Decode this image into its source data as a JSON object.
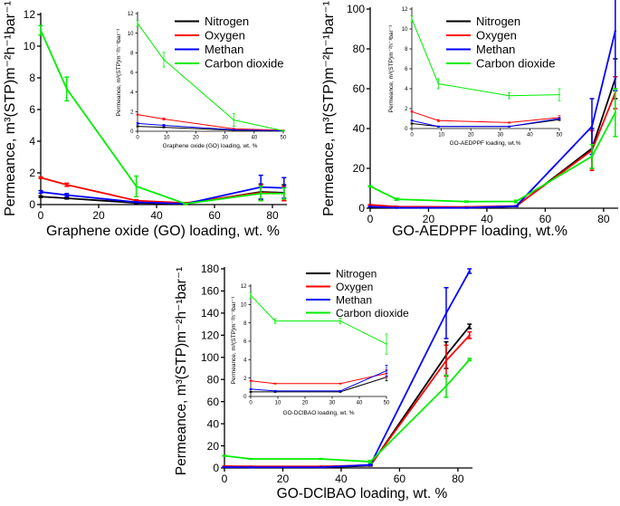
{
  "colors": {
    "Nitrogen": "#000000",
    "Oxygen": "#ff0000",
    "Methan": "#0000ff",
    "Carbon dioxide": "#00ee00"
  },
  "chart_data": [
    {
      "id": "go-main",
      "type": "line",
      "xlabel": "Graphene oxide (GO) loading, wt. %",
      "ylabel": "Permeance, m³(STP)m⁻²h⁻¹bar⁻¹",
      "xlim": [
        0,
        85
      ],
      "ylim": [
        0,
        12
      ],
      "xticks": [
        0,
        20,
        40,
        60,
        80
      ],
      "yticks": [
        0,
        2,
        4,
        6,
        8,
        10,
        12
      ],
      "legend": "top-right",
      "x": [
        0,
        9,
        33,
        50,
        76,
        84
      ],
      "series": [
        {
          "name": "Nitrogen",
          "values": [
            0.5,
            0.4,
            0.1,
            0.05,
            0.8,
            0.75
          ],
          "errors": [
            0.05,
            0.05,
            0.03,
            0.02,
            0.5,
            0.5
          ]
        },
        {
          "name": "Oxygen",
          "values": [
            1.7,
            1.25,
            0.25,
            0.1,
            0.75,
            0.7
          ],
          "errors": [
            0.05,
            0.1,
            0.05,
            0.02,
            0.5,
            0.45
          ]
        },
        {
          "name": "Methan",
          "values": [
            0.8,
            0.6,
            0.15,
            0.05,
            1.1,
            1.05
          ],
          "errors": [
            0.08,
            0.1,
            0.03,
            0.02,
            0.75,
            0.65
          ]
        },
        {
          "name": "Carbon dioxide",
          "values": [
            11,
            7.3,
            1.15,
            0.05,
            0.7,
            0.7
          ],
          "errors": [
            0.3,
            0.75,
            0.65,
            0.03,
            0.45,
            0.35
          ]
        }
      ]
    },
    {
      "id": "go-inset",
      "type": "line",
      "xlabel": "Graphene oxide (GO) loading, wt. %",
      "ylabel": "Permeance, m³(STP)m⁻²h⁻¹bar⁻¹",
      "xlim": [
        0,
        50
      ],
      "ylim": [
        0,
        12
      ],
      "xticks": [
        0,
        10,
        20,
        30,
        40,
        50
      ],
      "yticks": [
        0,
        2,
        4,
        6,
        8,
        10,
        12
      ],
      "x": [
        0,
        9,
        33,
        50
      ],
      "series": [
        {
          "name": "Nitrogen",
          "values": [
            0.5,
            0.4,
            0.1,
            0.05
          ],
          "errors": [
            0.05,
            0.05,
            0.03,
            0.02
          ]
        },
        {
          "name": "Oxygen",
          "values": [
            1.7,
            1.25,
            0.25,
            0.1
          ],
          "errors": [
            0.05,
            0.1,
            0.05,
            0.02
          ]
        },
        {
          "name": "Methan",
          "values": [
            0.8,
            0.6,
            0.15,
            0.05
          ],
          "errors": [
            0.08,
            0.1,
            0.03,
            0.02
          ]
        },
        {
          "name": "Carbon dioxide",
          "values": [
            11,
            7.3,
            1.15,
            0.05
          ],
          "errors": [
            0.3,
            0.75,
            0.65,
            0.03
          ]
        }
      ]
    },
    {
      "id": "aedppf-main",
      "type": "line",
      "xlabel": "GO-AEDPPF loading, wt.%",
      "ylabel": "Permeance, m³(STP)m⁻²h⁻¹bar⁻¹",
      "xlim": [
        0,
        85
      ],
      "ylim": [
        0,
        100
      ],
      "xticks": [
        0,
        20,
        40,
        60,
        80
      ],
      "yticks": [
        0,
        20,
        40,
        60,
        80,
        100
      ],
      "legend": "top-right",
      "x": [
        0,
        9,
        33,
        50,
        76,
        84
      ],
      "series": [
        {
          "name": "Nitrogen",
          "values": [
            0.5,
            0.2,
            0.2,
            0.9,
            30,
            65
          ],
          "errors": [
            0.1,
            0.1,
            0.1,
            0.1,
            10,
            10
          ]
        },
        {
          "name": "Oxygen",
          "values": [
            1.7,
            0.8,
            0.6,
            1.1,
            29,
            58
          ],
          "errors": [
            0.1,
            0.1,
            0.1,
            0.2,
            10,
            8
          ]
        },
        {
          "name": "Methan",
          "values": [
            0.8,
            0.2,
            0.2,
            1.0,
            41,
            89
          ],
          "errors": [
            0.1,
            0.1,
            0.1,
            0.2,
            14,
            30
          ]
        },
        {
          "name": "Carbon dioxide",
          "values": [
            11,
            4.5,
            3.3,
            3.4,
            26,
            48
          ],
          "errors": [
            0.3,
            0.5,
            0.3,
            0.6,
            6,
            12
          ]
        }
      ]
    },
    {
      "id": "aedppf-inset",
      "type": "line",
      "xlabel": "GO-AEDPPF loading, wt.%",
      "ylabel": "Permeance, m³(STP)m⁻²h⁻¹bar⁻¹",
      "xlim": [
        0,
        50
      ],
      "ylim": [
        0,
        12
      ],
      "xticks": [
        0,
        10,
        20,
        30,
        40,
        50
      ],
      "yticks": [
        0,
        2,
        4,
        6,
        8,
        10,
        12
      ],
      "x": [
        0,
        9,
        33,
        50
      ],
      "series": [
        {
          "name": "Nitrogen",
          "values": [
            0.5,
            0.2,
            0.2,
            0.9
          ],
          "errors": [
            0.05,
            0.05,
            0.05,
            0.1
          ]
        },
        {
          "name": "Oxygen",
          "values": [
            1.7,
            0.8,
            0.6,
            1.1
          ],
          "errors": [
            0.05,
            0.1,
            0.05,
            0.2
          ]
        },
        {
          "name": "Methan",
          "values": [
            0.8,
            0.2,
            0.2,
            1.0
          ],
          "errors": [
            0.05,
            0.05,
            0.05,
            0.1
          ]
        },
        {
          "name": "Carbon dioxide",
          "values": [
            11,
            4.5,
            3.3,
            3.4
          ],
          "errors": [
            0.3,
            0.5,
            0.3,
            0.6
          ]
        }
      ]
    },
    {
      "id": "dcibao-main",
      "type": "line",
      "xlabel": "GO-DClBAO loading, wt. %",
      "ylabel": "Permeance, m³(STP)m⁻²h⁻¹bar⁻¹",
      "xlim": [
        0,
        85
      ],
      "ylim": [
        0,
        180
      ],
      "xticks": [
        0,
        20,
        40,
        60,
        80
      ],
      "yticks": [
        0,
        20,
        40,
        60,
        80,
        100,
        120,
        140,
        160,
        180
      ],
      "legend": "top-center",
      "x": [
        0,
        9,
        33,
        50,
        76,
        84
      ],
      "series": [
        {
          "name": "Nitrogen",
          "values": [
            0.5,
            0.5,
            0.5,
            2.1,
            102,
            128
          ],
          "errors": [
            0.1,
            0.1,
            0.1,
            0.4,
            12,
            2
          ]
        },
        {
          "name": "Oxygen",
          "values": [
            1.7,
            1.4,
            1.4,
            2.5,
            97,
            120
          ],
          "errors": [
            0.1,
            0.1,
            0.1,
            0.4,
            14,
            3
          ]
        },
        {
          "name": "Methan",
          "values": [
            0.8,
            0.6,
            0.6,
            2.8,
            140,
            178
          ],
          "errors": [
            0.1,
            0.1,
            0.1,
            0.6,
            23,
            2
          ]
        },
        {
          "name": "Carbon dioxide",
          "values": [
            11,
            8.2,
            8.2,
            5.7,
            74,
            98
          ],
          "errors": [
            0.3,
            0.2,
            0.3,
            1.1,
            10,
            1
          ]
        }
      ]
    },
    {
      "id": "dcibao-inset",
      "type": "line",
      "xlabel": "GO-DClBAO loading, wt. %",
      "ylabel": "Permeance, m³(STP)m⁻²h⁻¹bar⁻¹",
      "xlim": [
        0,
        50
      ],
      "ylim": [
        0,
        12
      ],
      "xticks": [
        0,
        10,
        20,
        30,
        40,
        50
      ],
      "yticks": [
        0,
        2,
        4,
        6,
        8,
        10,
        12
      ],
      "x": [
        0,
        9,
        33,
        50
      ],
      "series": [
        {
          "name": "Nitrogen",
          "values": [
            0.5,
            0.5,
            0.5,
            2.1
          ],
          "errors": [
            0.05,
            0.05,
            0.05,
            0.4
          ]
        },
        {
          "name": "Oxygen",
          "values": [
            1.7,
            1.4,
            1.4,
            2.5
          ],
          "errors": [
            0.05,
            0.05,
            0.05,
            0.4
          ]
        },
        {
          "name": "Methan",
          "values": [
            0.8,
            0.6,
            0.6,
            2.8
          ],
          "errors": [
            0.05,
            0.05,
            0.05,
            0.6
          ]
        },
        {
          "name": "Carbon dioxide",
          "values": [
            11,
            8.2,
            8.2,
            5.7
          ],
          "errors": [
            0.3,
            0.25,
            0.3,
            1.1
          ]
        }
      ]
    }
  ]
}
